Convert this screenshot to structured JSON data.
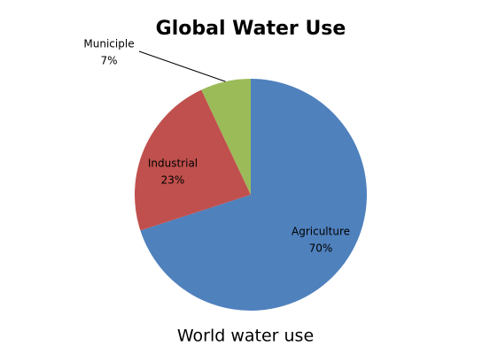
{
  "chart_data": {
    "type": "pie",
    "title": "Global Water Use",
    "categories": [
      "Agriculture",
      "Industrial",
      "Municiple"
    ],
    "values": [
      70,
      23,
      7
    ],
    "value_labels": [
      "70%",
      "23%",
      "7%"
    ],
    "colors": [
      "#4f81bd",
      "#c0504d",
      "#9bbb59"
    ]
  },
  "caption": "World water use"
}
